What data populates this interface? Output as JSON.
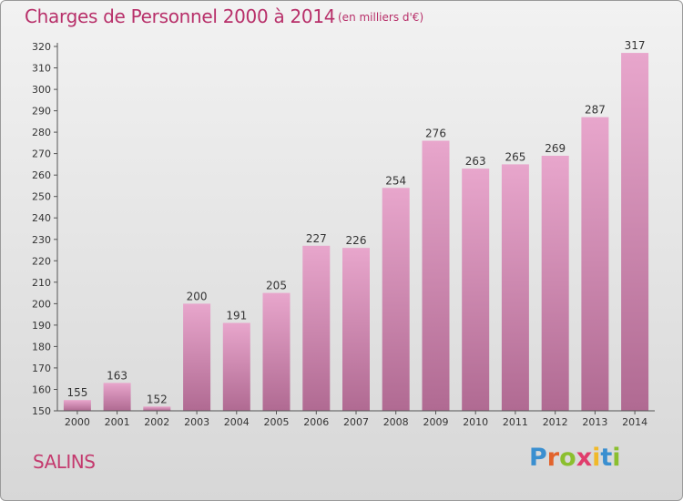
{
  "title": "Charges de Personnel 2000 à 2014",
  "subtitle": "(en milliers d'€)",
  "commune": "SALINS",
  "logo": "Proxiti",
  "colors": {
    "title": "#b8306a",
    "bar_top": "#e8a6cc",
    "bar_bottom": "#b06a92",
    "axis": "#555555"
  },
  "chart_data": {
    "type": "bar",
    "title": "Charges de Personnel 2000 à 2014",
    "xlabel": "",
    "ylabel": "",
    "categories": [
      "2000",
      "2001",
      "2002",
      "2003",
      "2004",
      "2005",
      "2006",
      "2007",
      "2008",
      "2009",
      "2010",
      "2011",
      "2012",
      "2013",
      "2014"
    ],
    "values": [
      155,
      163,
      152,
      200,
      191,
      205,
      227,
      226,
      254,
      276,
      263,
      265,
      269,
      287,
      317
    ],
    "ylim": [
      150,
      320
    ],
    "yticks": [
      150,
      160,
      170,
      180,
      190,
      200,
      210,
      220,
      230,
      240,
      250,
      260,
      270,
      280,
      290,
      300,
      310,
      320
    ],
    "grid": false,
    "legend": "none"
  }
}
